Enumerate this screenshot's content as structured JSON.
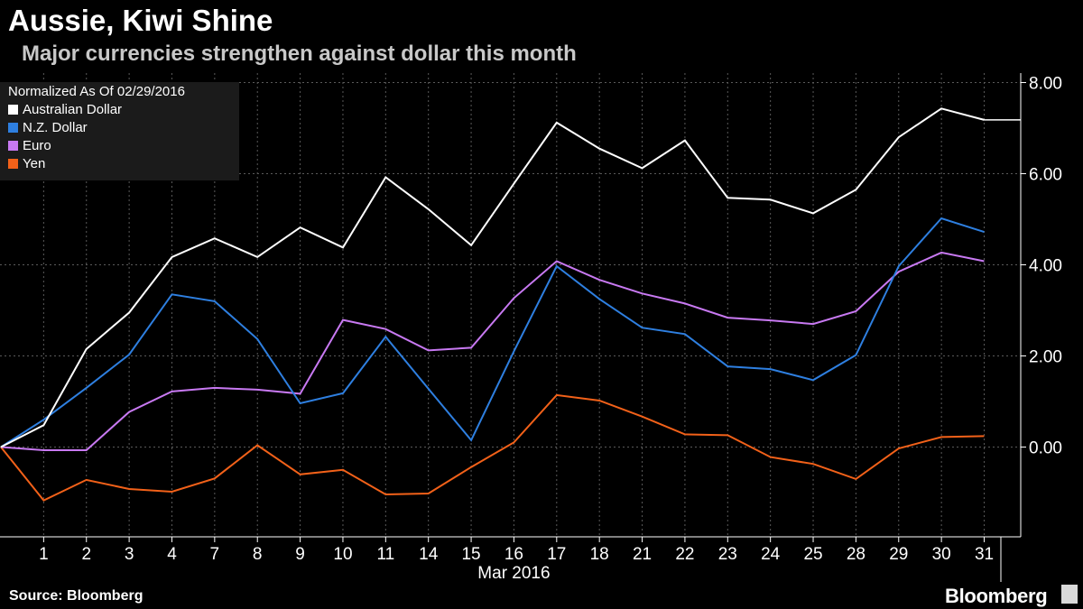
{
  "header": {
    "title": "Aussie, Kiwi Shine",
    "subtitle": "Major currencies strengthen against dollar this month"
  },
  "footer": {
    "source": "Source: Bloomberg",
    "brand": "Bloomberg"
  },
  "colors": {
    "background": "#000000",
    "grid": "#5a5a5a",
    "aud": "#ffffff",
    "nzd": "#2e7fe0",
    "eur": "#c879f2",
    "jpy": "#f26119"
  },
  "chart_data": {
    "type": "line",
    "title": "Aussie, Kiwi Shine",
    "subtitle": "Major currencies strengthen against dollar this month",
    "legend_title": "Normalized As Of 02/29/2016",
    "legend_position": "top-left",
    "xlabel": "Mar 2016",
    "ylabel": "",
    "x": [
      "",
      "1",
      "2",
      "3",
      "4",
      "7",
      "8",
      "9",
      "10",
      "11",
      "14",
      "15",
      "16",
      "17",
      "18",
      "21",
      "22",
      "23",
      "24",
      "25",
      "28",
      "29",
      "30",
      "31"
    ],
    "ylim": [
      -2.0,
      8.0
    ],
    "yticks": [
      "8.00",
      "6.00",
      "4.00",
      "2.00",
      "0.00"
    ],
    "ytick_values": [
      8,
      6,
      4,
      2,
      0
    ],
    "grid": true,
    "y_axis_side": "right",
    "series": [
      {
        "name": "Australian Dollar",
        "color_key": "aud",
        "values": [
          0.0,
          0.48,
          2.15,
          2.95,
          4.17,
          4.58,
          4.17,
          4.82,
          4.38,
          5.92,
          5.22,
          4.43,
          5.78,
          7.12,
          6.55,
          6.12,
          6.73,
          5.47,
          5.43,
          5.13,
          5.65,
          6.8,
          7.43,
          7.18
        ]
      },
      {
        "name": "N.Z. Dollar",
        "color_key": "nzd",
        "values": [
          0.0,
          0.6,
          1.3,
          2.03,
          3.35,
          3.2,
          2.37,
          0.96,
          1.18,
          2.42,
          1.28,
          0.15,
          2.1,
          3.97,
          3.25,
          2.62,
          2.48,
          1.77,
          1.71,
          1.47,
          2.02,
          3.97,
          5.02,
          4.72
        ]
      },
      {
        "name": "Euro",
        "color_key": "eur",
        "values": [
          0.0,
          -0.07,
          -0.07,
          0.77,
          1.22,
          1.3,
          1.26,
          1.17,
          2.79,
          2.59,
          2.12,
          2.18,
          3.27,
          4.08,
          3.67,
          3.37,
          3.15,
          2.84,
          2.78,
          2.7,
          2.98,
          3.85,
          4.27,
          4.08
        ]
      },
      {
        "name": "Yen",
        "color_key": "jpy",
        "values": [
          0.0,
          -1.17,
          -0.72,
          -0.92,
          -0.98,
          -0.69,
          0.04,
          -0.6,
          -0.5,
          -1.04,
          -1.02,
          -0.44,
          0.1,
          1.14,
          1.02,
          0.67,
          0.28,
          0.26,
          -0.22,
          -0.37,
          -0.7,
          -0.03,
          0.22,
          0.24
        ]
      }
    ]
  }
}
